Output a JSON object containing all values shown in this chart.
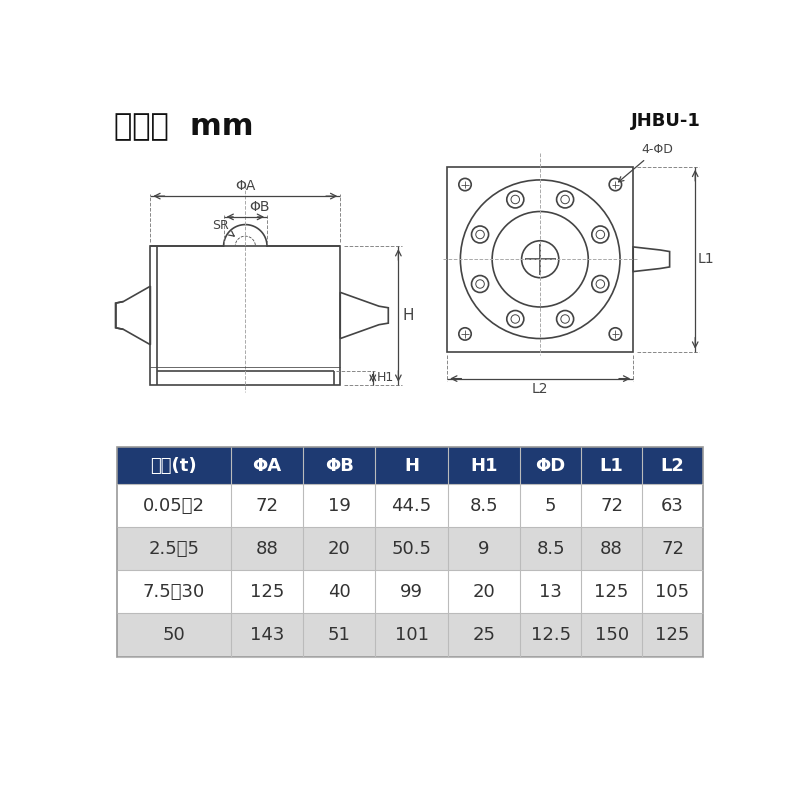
{
  "title_left": "尺寸：  mm",
  "title_right": "JHBU-1",
  "bg_color": "#ffffff",
  "table_header_bg": "#1e3a72",
  "table_header_color": "#ffffff",
  "table_row_colors": [
    "#ffffff",
    "#d9d9d9",
    "#ffffff",
    "#d9d9d9"
  ],
  "table_border_color": "#cccccc",
  "table_text_color": "#333333",
  "headers": [
    "量程(t)",
    "ΦA",
    "ΦB",
    "H",
    "H1",
    "ΦD",
    "L1",
    "L2"
  ],
  "rows": [
    [
      "0.05～2",
      "72",
      "19",
      "44.5",
      "8.5",
      "5",
      "72",
      "63"
    ],
    [
      "2.5～5",
      "88",
      "20",
      "50.5",
      "9",
      "8.5",
      "88",
      "72"
    ],
    [
      "7.5～30",
      "125",
      "40",
      "99",
      "20",
      "13",
      "125",
      "105"
    ],
    [
      "50",
      "143",
      "51",
      "101",
      "25",
      "12.5",
      "150",
      "125"
    ]
  ],
  "line_color": "#444444",
  "dim_color": "#444444",
  "anno_color": "#444444"
}
